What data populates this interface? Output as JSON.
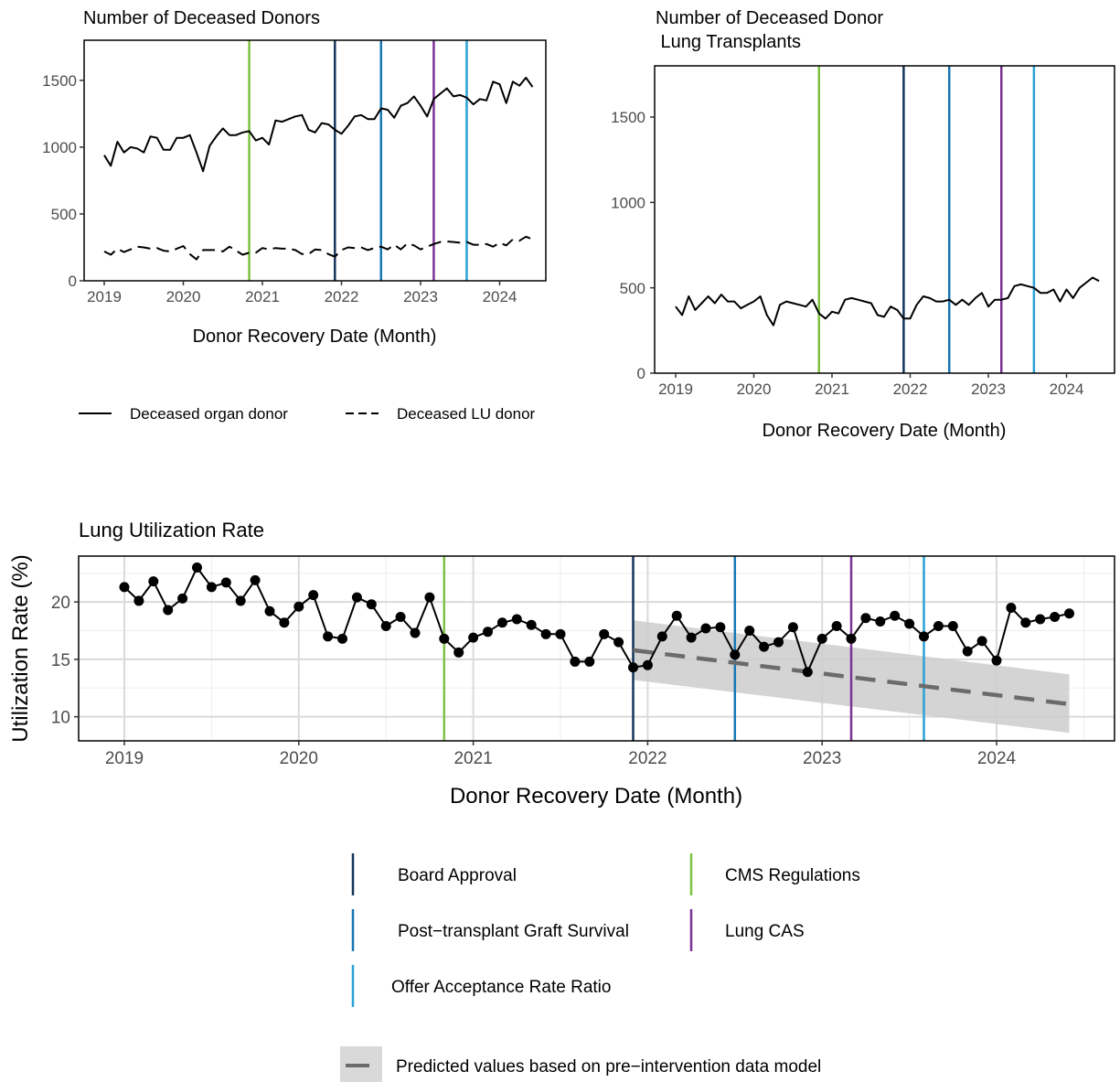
{
  "colors": {
    "cms_regulations": "#7dc242",
    "board_approval": "#15355a",
    "graft_survival": "#1777b4",
    "lung_cas": "#7b3294",
    "offer_acceptance": "#2aa1d6",
    "prediction_line": "#6b6b6b",
    "prediction_band": "#cccccc"
  },
  "interventions": [
    {
      "name": "CMS Regulations",
      "date": "2020-11",
      "color_key": "cms_regulations"
    },
    {
      "name": "Board Approval",
      "date": "2021-12",
      "color_key": "board_approval"
    },
    {
      "name": "Post−transplant Graft Survival",
      "date": "2022-07",
      "color_key": "graft_survival"
    },
    {
      "name": "Lung CAS",
      "date": "2023-03",
      "color_key": "lung_cas"
    },
    {
      "name": "Offer Acceptance Rate Ratio",
      "date": "2023-08",
      "color_key": "offer_acceptance"
    }
  ],
  "legend": {
    "donors_legend": [
      {
        "label": "Deceased organ donor",
        "line": "solid"
      },
      {
        "label": "Deceased LU donor",
        "line": "dashed"
      }
    ],
    "interventions_legend": [
      {
        "label": "Board Approval",
        "color_key": "board_approval"
      },
      {
        "label": "CMS Regulations",
        "color_key": "cms_regulations"
      },
      {
        "label": "Post−transplant Graft Survival",
        "color_key": "graft_survival"
      },
      {
        "label": "Lung CAS",
        "color_key": "lung_cas"
      },
      {
        "label": "Offer Acceptance Rate Ratio",
        "color_key": "offer_acceptance"
      }
    ],
    "prediction_label": "Predicted values based on pre−intervention data model"
  },
  "chart_data": [
    {
      "type": "line",
      "title": "Number of Deceased Donors",
      "xlabel": "Donor Recovery Date (Month)",
      "ylabel": "",
      "x_start": "2019-01",
      "x_end": "2024-06",
      "x_ticks": [
        "2019",
        "2020",
        "2021",
        "2022",
        "2023",
        "2024"
      ],
      "ylim": [
        0,
        1800
      ],
      "y_ticks": [
        0,
        500,
        1000,
        1500
      ],
      "grid": false,
      "legend": "bottom",
      "series": [
        {
          "name": "Deceased organ donor",
          "line": "solid",
          "values": [
            940,
            860,
            1040,
            960,
            1000,
            990,
            960,
            1080,
            1070,
            980,
            980,
            1070,
            1070,
            1090,
            960,
            820,
            1010,
            1080,
            1140,
            1090,
            1090,
            1110,
            1120,
            1050,
            1070,
            1020,
            1200,
            1190,
            1210,
            1230,
            1240,
            1130,
            1110,
            1180,
            1170,
            1130,
            1100,
            1160,
            1230,
            1240,
            1210,
            1210,
            1290,
            1280,
            1220,
            1310,
            1330,
            1380,
            1310,
            1230,
            1360,
            1400,
            1440,
            1380,
            1390,
            1370,
            1320,
            1360,
            1350,
            1490,
            1470,
            1330,
            1490,
            1460,
            1520,
            1450
          ]
        },
        {
          "name": "Deceased LU donor",
          "line": "dashed",
          "values": [
            220,
            195,
            240,
            215,
            235,
            255,
            250,
            240,
            245,
            225,
            220,
            240,
            260,
            200,
            160,
            230,
            230,
            230,
            220,
            255,
            225,
            195,
            210,
            210,
            245,
            235,
            245,
            240,
            240,
            230,
            200,
            200,
            235,
            230,
            200,
            180,
            230,
            250,
            245,
            250,
            230,
            245,
            255,
            235,
            270,
            235,
            280,
            265,
            235,
            255,
            275,
            290,
            295,
            290,
            285,
            290,
            270,
            270,
            275,
            255,
            285,
            265,
            310,
            300,
            330,
            310
          ]
        }
      ]
    },
    {
      "type": "line",
      "title": "Number of Deceased Donor\n Lung Transplants",
      "xlabel": "Donor Recovery Date (Month)",
      "ylabel": "",
      "x_start": "2019-01",
      "x_end": "2024-06",
      "x_ticks": [
        "2019",
        "2020",
        "2021",
        "2022",
        "2023",
        "2024"
      ],
      "ylim": [
        0,
        1800
      ],
      "y_ticks": [
        0,
        500,
        1000,
        1500
      ],
      "grid": false,
      "series": [
        {
          "name": "Lung transplants",
          "line": "solid",
          "values": [
            390,
            340,
            450,
            370,
            410,
            450,
            410,
            460,
            420,
            420,
            380,
            400,
            420,
            450,
            340,
            280,
            400,
            420,
            410,
            400,
            390,
            430,
            350,
            320,
            360,
            350,
            430,
            440,
            430,
            420,
            410,
            340,
            330,
            390,
            370,
            320,
            320,
            400,
            450,
            440,
            420,
            420,
            430,
            400,
            430,
            400,
            440,
            470,
            390,
            430,
            430,
            440,
            510,
            520,
            510,
            500,
            470,
            470,
            490,
            420,
            490,
            440,
            500,
            530,
            560,
            540
          ]
        }
      ]
    },
    {
      "type": "line",
      "title": "Lung Utilization Rate",
      "xlabel": "Donor Recovery Date (Month)",
      "ylabel": "Utilization Rate (%)",
      "x_start": "2019-01",
      "x_end": "2024-06",
      "x_ticks": [
        "2019",
        "2020",
        "2021",
        "2022",
        "2023",
        "2024"
      ],
      "ylim": [
        7.9,
        24
      ],
      "y_ticks": [
        10,
        15,
        20
      ],
      "grid": true,
      "series": [
        {
          "name": "Utilization rate",
          "line": "solid",
          "markers": true,
          "values": [
            21.3,
            20.1,
            21.8,
            19.3,
            20.3,
            23.0,
            21.3,
            21.7,
            20.1,
            21.9,
            19.2,
            18.2,
            19.6,
            20.6,
            17.0,
            16.8,
            20.4,
            19.8,
            17.9,
            18.7,
            17.3,
            20.4,
            16.8,
            15.6,
            16.9,
            17.4,
            18.2,
            18.5,
            18.0,
            17.2,
            17.2,
            14.8,
            14.8,
            17.2,
            16.5,
            14.3,
            14.5,
            17.0,
            18.8,
            16.9,
            17.7,
            17.8,
            15.4,
            17.5,
            16.1,
            16.5,
            17.8,
            13.9,
            16.8,
            17.9,
            16.8,
            18.6,
            18.3,
            18.8,
            18.1,
            17.0,
            17.9,
            17.9,
            15.7,
            16.6,
            14.9,
            19.5,
            18.2,
            18.5,
            18.7,
            19.0
          ]
        },
        {
          "name": "Predicted values based on pre−intervention data model",
          "line": "dashed",
          "x_range": [
            "2021-12",
            "2024-06"
          ],
          "values_start": 15.8,
          "values_end": 11.1,
          "band_lower": [
            13.2,
            8.6
          ],
          "band_upper": [
            18.4,
            13.7
          ]
        }
      ]
    }
  ]
}
